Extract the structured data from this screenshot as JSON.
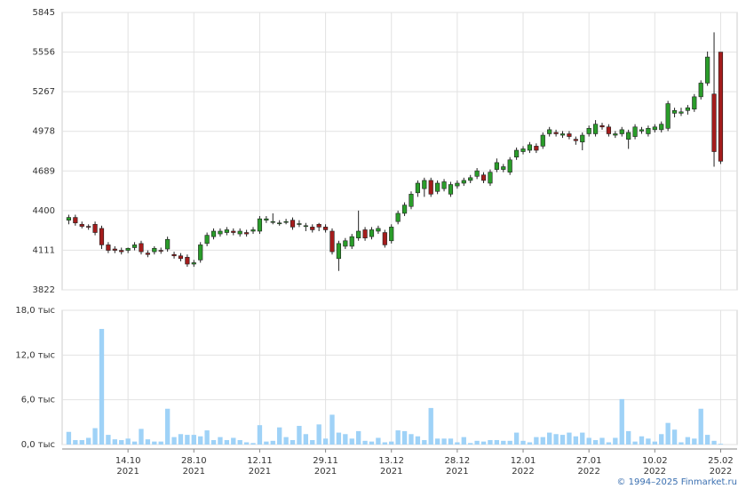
{
  "chart_data": [
    {
      "type": "candlestick",
      "open": [
        4330,
        4350,
        4300,
        4285,
        4300,
        4270,
        4150,
        4120,
        4110,
        4110,
        4130,
        4160,
        4090,
        4100,
        4110,
        4120,
        4080,
        4070,
        4060,
        4010,
        4040,
        4160,
        4210,
        4230,
        4240,
        4250,
        4230,
        4240,
        4250,
        4250,
        4330,
        4320,
        4310,
        4320,
        4330,
        4300,
        4290,
        4280,
        4300,
        4280,
        4250,
        4050,
        4140,
        4140,
        4200,
        4260,
        4210,
        4250,
        4240,
        4180,
        4320,
        4380,
        4430,
        4530,
        4560,
        4620,
        4540,
        4560,
        4520,
        4580,
        4600,
        4620,
        4650,
        4660,
        4600,
        4700,
        4700,
        4680,
        4790,
        4830,
        4840,
        4870,
        4870,
        4960,
        4970,
        4950,
        4960,
        4920,
        4900,
        4960,
        4960,
        5020,
        5010,
        4950,
        4960,
        4920,
        4940,
        4980,
        4960,
        4990,
        4990,
        5000,
        5110,
        5110,
        5130,
        5140,
        5230,
        5330,
        5250,
        5556
      ],
      "high": [
        4370,
        4370,
        4320,
        4300,
        4320,
        4290,
        4170,
        4140,
        4130,
        4130,
        4170,
        4180,
        4110,
        4140,
        4130,
        4210,
        4100,
        4090,
        4080,
        4040,
        4170,
        4240,
        4270,
        4270,
        4280,
        4270,
        4270,
        4260,
        4280,
        4360,
        4360,
        4380,
        4330,
        4340,
        4350,
        4330,
        4310,
        4300,
        4310,
        4300,
        4270,
        4180,
        4200,
        4230,
        4400,
        4280,
        4280,
        4290,
        4260,
        4300,
        4400,
        4460,
        4540,
        4620,
        4640,
        4640,
        4620,
        4630,
        4610,
        4620,
        4640,
        4660,
        4710,
        4680,
        4700,
        4780,
        4740,
        4790,
        4860,
        4870,
        4900,
        4890,
        4970,
        5010,
        4990,
        4980,
        4980,
        4940,
        4970,
        5020,
        5060,
        5040,
        5030,
        4980,
        5010,
        4990,
        5030,
        5010,
        5020,
        5030,
        5050,
        5200,
        5150,
        5150,
        5170,
        5250,
        5350,
        5560,
        5700,
        5556
      ],
      "low": [
        4300,
        4290,
        4270,
        4260,
        4220,
        4120,
        4090,
        4090,
        4080,
        4090,
        4110,
        4080,
        4060,
        4080,
        4085,
        4100,
        4050,
        4030,
        3990,
        3990,
        4020,
        4140,
        4190,
        4210,
        4220,
        4220,
        4210,
        4210,
        4230,
        4230,
        4310,
        4300,
        4290,
        4300,
        4260,
        4280,
        4250,
        4240,
        4250,
        4240,
        4080,
        3960,
        4120,
        4120,
        4180,
        4180,
        4190,
        4230,
        4130,
        4160,
        4300,
        4360,
        4410,
        4500,
        4500,
        4500,
        4520,
        4540,
        4500,
        4560,
        4580,
        4600,
        4630,
        4600,
        4580,
        4680,
        4680,
        4660,
        4770,
        4810,
        4820,
        4820,
        4850,
        4940,
        4940,
        4930,
        4920,
        4880,
        4840,
        4940,
        4940,
        4990,
        4940,
        4930,
        4940,
        4850,
        4920,
        4960,
        4940,
        4970,
        4970,
        4980,
        5080,
        5090,
        5100,
        5120,
        5210,
        5310,
        4720,
        4740
      ],
      "close": [
        4350,
        4310,
        4285,
        4280,
        4240,
        4150,
        4110,
        4110,
        4100,
        4125,
        4150,
        4100,
        4080,
        4125,
        4105,
        4190,
        4070,
        4050,
        4010,
        4020,
        4150,
        4220,
        4250,
        4250,
        4260,
        4240,
        4250,
        4230,
        4260,
        4340,
        4340,
        4320,
        4310,
        4320,
        4280,
        4305,
        4290,
        4260,
        4280,
        4260,
        4100,
        4160,
        4180,
        4210,
        4250,
        4200,
        4260,
        4270,
        4150,
        4280,
        4380,
        4440,
        4520,
        4600,
        4620,
        4520,
        4600,
        4610,
        4590,
        4600,
        4620,
        4640,
        4690,
        4620,
        4680,
        4750,
        4720,
        4770,
        4840,
        4850,
        4880,
        4840,
        4950,
        4990,
        4960,
        4960,
        4940,
        4910,
        4950,
        5000,
        5030,
        5010,
        4960,
        4960,
        4990,
        4970,
        5010,
        4990,
        5000,
        5010,
        5030,
        5180,
        5130,
        5120,
        5150,
        5230,
        5330,
        5520,
        4830,
        4760
      ],
      "up_color": "#2a9d2a",
      "down_color": "#a41c1c",
      "ylim": [
        3822,
        5845
      ],
      "yticks": [
        3822,
        4111,
        4400,
        4689,
        4978,
        5267,
        5556,
        5845
      ],
      "grid": true
    },
    {
      "type": "bar",
      "values": [
        1.7,
        0.6,
        0.6,
        0.9,
        2.2,
        15.5,
        1.3,
        0.7,
        0.6,
        0.8,
        0.4,
        2.1,
        0.7,
        0.4,
        0.4,
        4.8,
        1.0,
        1.4,
        1.3,
        1.3,
        1.1,
        1.9,
        0.6,
        1.0,
        0.6,
        0.9,
        0.6,
        0.3,
        0.2,
        2.6,
        0.4,
        0.5,
        2.3,
        1.0,
        0.6,
        2.5,
        1.4,
        0.6,
        2.7,
        0.8,
        4.0,
        1.6,
        1.4,
        0.8,
        1.8,
        0.5,
        0.4,
        0.9,
        0.3,
        0.4,
        1.9,
        1.8,
        1.4,
        1.1,
        0.6,
        4.9,
        0.8,
        0.8,
        0.8,
        0.3,
        1.0,
        0.2,
        0.5,
        0.4,
        0.6,
        0.6,
        0.5,
        0.5,
        1.6,
        0.5,
        0.3,
        1.0,
        1.0,
        1.6,
        1.4,
        1.3,
        1.6,
        1.1,
        1.6,
        0.9,
        0.6,
        0.9,
        0.3,
        0.9,
        6.1,
        1.8,
        0.4,
        1.1,
        0.8,
        0.4,
        1.4,
        2.9,
        2.0,
        0.3,
        1.0,
        0.8,
        4.8,
        1.3,
        0.5,
        0.1
      ],
      "color": "#9fd2f7",
      "ylim": [
        0,
        18
      ],
      "yticks": [
        {
          "value": 0,
          "label": "0,0 тыс"
        },
        {
          "value": 6,
          "label": "6,0 тыс"
        },
        {
          "value": 12,
          "label": "12,0 тыс"
        },
        {
          "value": 18,
          "label": "18,0 тыс"
        }
      ],
      "xlim": [
        -1,
        101.5
      ],
      "xticks": [
        {
          "value": 9,
          "label": "14.10",
          "year": "2021"
        },
        {
          "value": 19,
          "label": "28.10",
          "year": "2021"
        },
        {
          "value": 29,
          "label": "12.11",
          "year": "2021"
        },
        {
          "value": 39,
          "label": "29.11",
          "year": "2021"
        },
        {
          "value": 49,
          "label": "13.12",
          "year": "2021"
        },
        {
          "value": 59,
          "label": "28.12",
          "year": "2021"
        },
        {
          "value": 69,
          "label": "12.01",
          "year": "2022"
        },
        {
          "value": 79,
          "label": "27.01",
          "year": "2022"
        },
        {
          "value": 89,
          "label": "10.02",
          "year": "2022"
        },
        {
          "value": 99,
          "label": "25.02",
          "year": "2022"
        }
      ],
      "grid": true
    }
  ],
  "footer": "© 1994–2025 Finmarket.ru"
}
